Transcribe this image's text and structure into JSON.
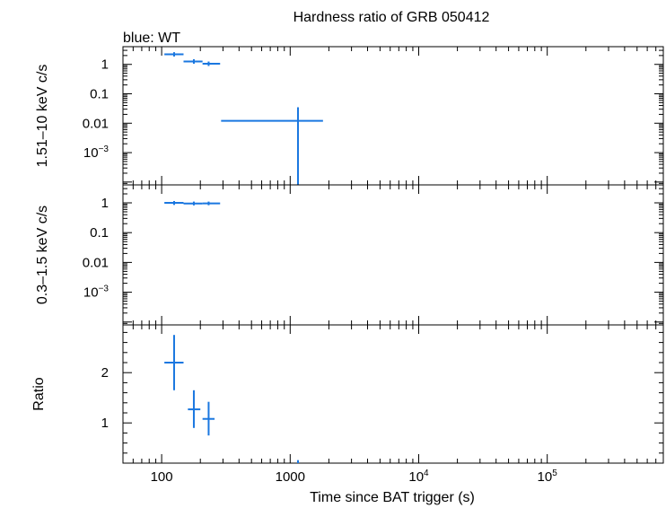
{
  "chart_data": {
    "type": "scatter",
    "title": "Hardness ratio of GRB 050412",
    "legend_text": "blue: WT",
    "xlabel": "Time since BAT trigger (s)",
    "x_scale": "log",
    "xlim": [
      50,
      800000
    ],
    "x_ticks": [
      {
        "value": 100,
        "label": "100"
      },
      {
        "value": 1000,
        "label": "1000"
      },
      {
        "value": 10000,
        "label": "10",
        "sup": "4"
      },
      {
        "value": 100000,
        "label": "10",
        "sup": "5"
      }
    ],
    "color": "#1a77e0",
    "panels": [
      {
        "id": "hard",
        "ylabel": "1.51–10 keV c/s",
        "y_scale": "log",
        "ylim": [
          8e-05,
          4
        ],
        "y_ticks": [
          {
            "value": 1,
            "label": "1"
          },
          {
            "value": 0.1,
            "label": "0.1"
          },
          {
            "value": 0.01,
            "label": "0.01"
          },
          {
            "value": 0.001,
            "label": "10",
            "sup": "−3"
          }
        ],
        "points": [
          {
            "x": 125,
            "x_lo": 105,
            "x_hi": 148,
            "y": 2.2,
            "y_lo": 1.85,
            "y_hi": 2.6
          },
          {
            "x": 178,
            "x_lo": 148,
            "x_hi": 208,
            "y": 1.25,
            "y_lo": 1.05,
            "y_hi": 1.5
          },
          {
            "x": 232,
            "x_lo": 208,
            "x_hi": 285,
            "y": 1.05,
            "y_lo": 0.88,
            "y_hi": 1.25
          },
          {
            "x": 1150,
            "x_lo": 290,
            "x_hi": 1800,
            "y": 0.012,
            "y_lo": 8e-05,
            "y_hi": 0.035
          }
        ]
      },
      {
        "id": "soft",
        "ylabel": "0.3–1.5 keV c/s",
        "y_scale": "log",
        "ylim": [
          8e-05,
          4
        ],
        "y_ticks": [
          {
            "value": 1,
            "label": "1"
          },
          {
            "value": 0.1,
            "label": "0.1"
          },
          {
            "value": 0.01,
            "label": "0.01"
          },
          {
            "value": 0.001,
            "label": "10",
            "sup": "−3"
          }
        ],
        "points": [
          {
            "x": 125,
            "x_lo": 105,
            "x_hi": 148,
            "y": 1.0,
            "y_lo": 0.85,
            "y_hi": 1.15
          },
          {
            "x": 178,
            "x_lo": 148,
            "x_hi": 208,
            "y": 0.95,
            "y_lo": 0.82,
            "y_hi": 1.1
          },
          {
            "x": 232,
            "x_lo": 208,
            "x_hi": 285,
            "y": 0.96,
            "y_lo": 0.83,
            "y_hi": 1.1
          }
        ]
      },
      {
        "id": "ratio",
        "ylabel": "Ratio",
        "y_scale": "linear",
        "ylim": [
          0.2,
          2.95
        ],
        "y_ticks": [
          {
            "value": 1,
            "label": "1"
          },
          {
            "value": 2,
            "label": "2"
          }
        ],
        "points": [
          {
            "x": 125,
            "x_lo": 105,
            "x_hi": 148,
            "y": 2.2,
            "y_lo": 1.65,
            "y_hi": 2.75
          },
          {
            "x": 178,
            "x_lo": 160,
            "x_hi": 200,
            "y": 1.27,
            "y_lo": 0.9,
            "y_hi": 1.65
          },
          {
            "x": 232,
            "x_lo": 208,
            "x_hi": 258,
            "y": 1.08,
            "y_lo": 0.75,
            "y_hi": 1.42
          },
          {
            "x": 1150,
            "x_lo": 1140,
            "x_hi": 1160,
            "y": 0.22,
            "y_lo": 0.2,
            "y_hi": 0.26
          }
        ]
      }
    ]
  }
}
